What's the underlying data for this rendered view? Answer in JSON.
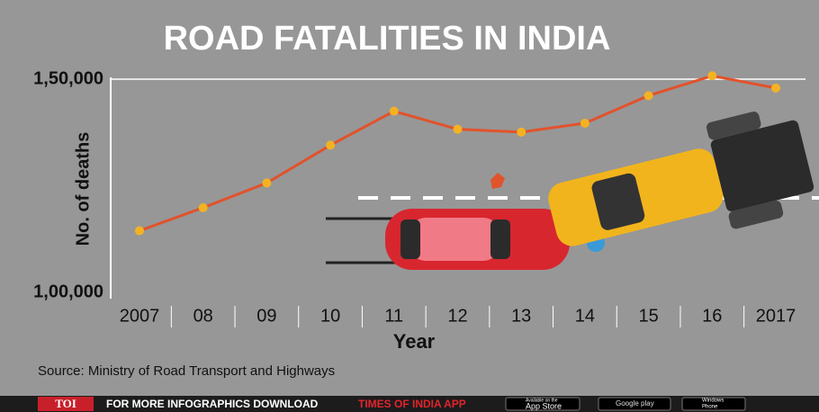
{
  "chart_data": {
    "type": "line",
    "title": "ROAD FATALITIES IN INDIA",
    "y_label": "No. of deaths",
    "x_label": "Year",
    "categories": [
      "2007",
      "08",
      "09",
      "10",
      "11",
      "12",
      "13",
      "14",
      "15",
      "16",
      "2017"
    ],
    "values": [
      114444,
      119860,
      125660,
      134513,
      142485,
      138258,
      137572,
      139671,
      146133,
      150785,
      147913
    ],
    "color": "#e2522b",
    "marker_color": "#f4b223",
    "ylim": [
      100000,
      150000
    ],
    "yticks": [
      {
        "value": 100000,
        "label": "1,00,000"
      },
      {
        "value": 150000,
        "label": "1,50,000"
      }
    ],
    "grid": true,
    "source": "Source: Ministry of Road Transport and Highways"
  },
  "footer": {
    "brand": "TOI",
    "text": "FOR MORE INFOGRAPHICS DOWNLOAD",
    "app": "TIMES OF INDIA APP",
    "stores": [
      {
        "small": "Available on the",
        "name": "App Store"
      },
      {
        "small": "",
        "name": "Google play"
      },
      {
        "small": "Windows",
        "name": "Phone"
      }
    ]
  }
}
